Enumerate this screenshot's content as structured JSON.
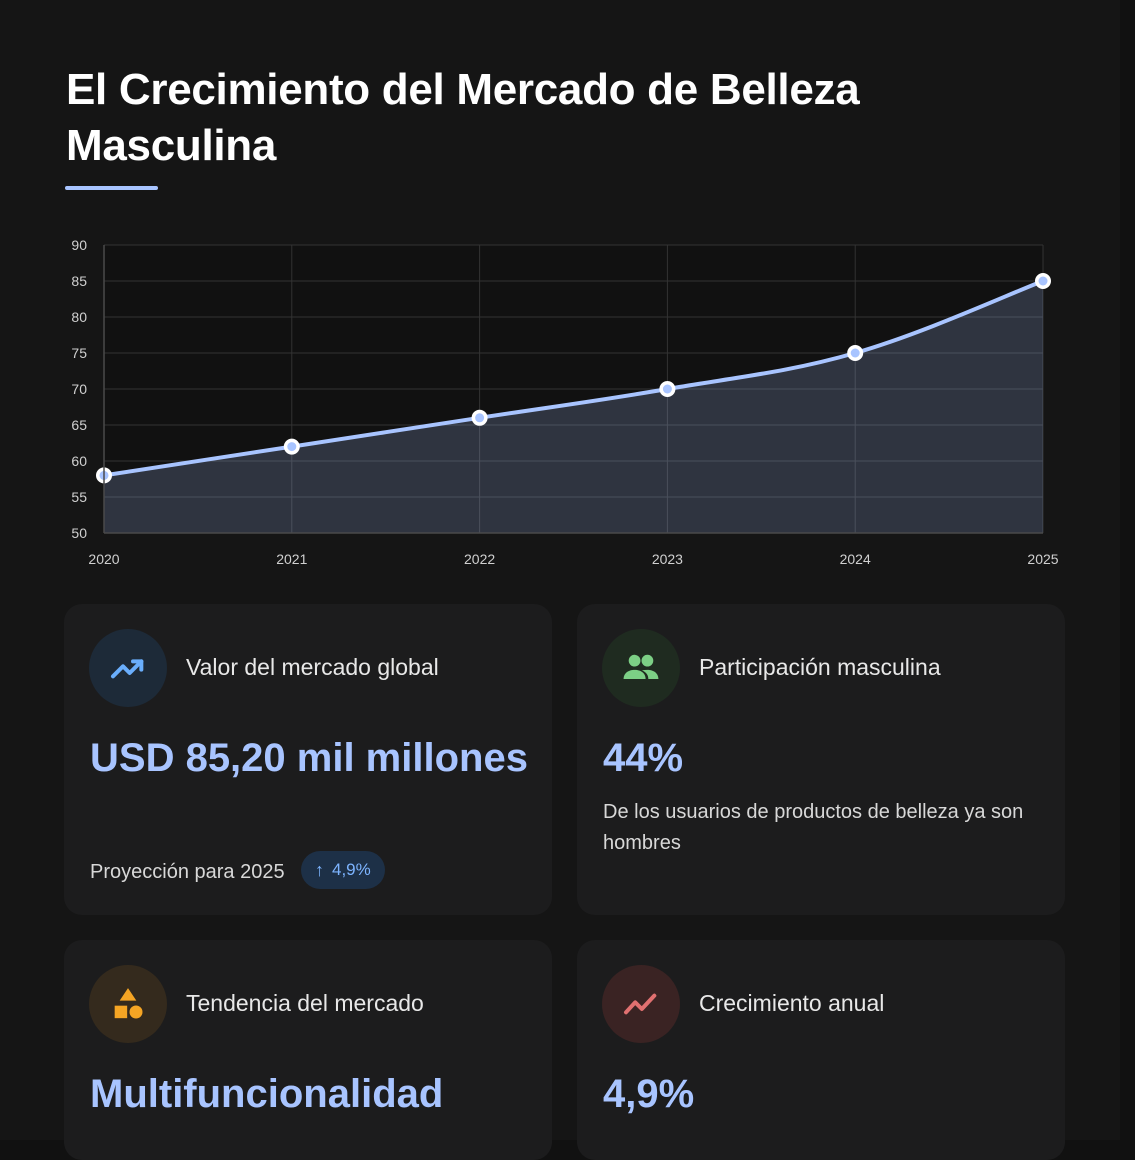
{
  "page": {
    "title": "El Crecimiento del Mercado de Belleza Masculina",
    "accent_color": "#a8c4ff"
  },
  "chart_data": {
    "type": "area",
    "x": [
      "2020",
      "2021",
      "2022",
      "2023",
      "2024",
      "2025"
    ],
    "series": [
      {
        "values": [
          58,
          62,
          66,
          70,
          75,
          85
        ],
        "color": "#a8c4ff"
      }
    ],
    "ylim": [
      50,
      90
    ],
    "yticks": [
      50,
      55,
      60,
      65,
      70,
      75,
      80,
      85,
      90
    ],
    "grid": true,
    "title": "",
    "xlabel": "",
    "ylabel": ""
  },
  "cards": [
    {
      "icon": "trending-up-icon",
      "icon_color": "#6aaefc",
      "icon_bg": "#1d2a38",
      "label": "Valor del mercado global",
      "value": "USD 85,20 mil millones",
      "footnote": "Proyección para 2025",
      "badge": "4,9%"
    },
    {
      "icon": "users-icon",
      "icon_color": "#7ccf85",
      "icon_bg": "#1f2b20",
      "label": "Participación masculina",
      "value": "44%",
      "description": "De los usuarios de productos de belleza ya son hombres"
    },
    {
      "icon": "shapes-icon",
      "icon_color": "#f5a524",
      "icon_bg": "#342a1d",
      "label": "Tendencia del mercado",
      "value": "Multifuncionalidad"
    },
    {
      "icon": "trend-line-icon",
      "icon_color": "#e07070",
      "icon_bg": "#3a2323",
      "label": "Crecimiento anual",
      "value": "4,9%"
    }
  ]
}
